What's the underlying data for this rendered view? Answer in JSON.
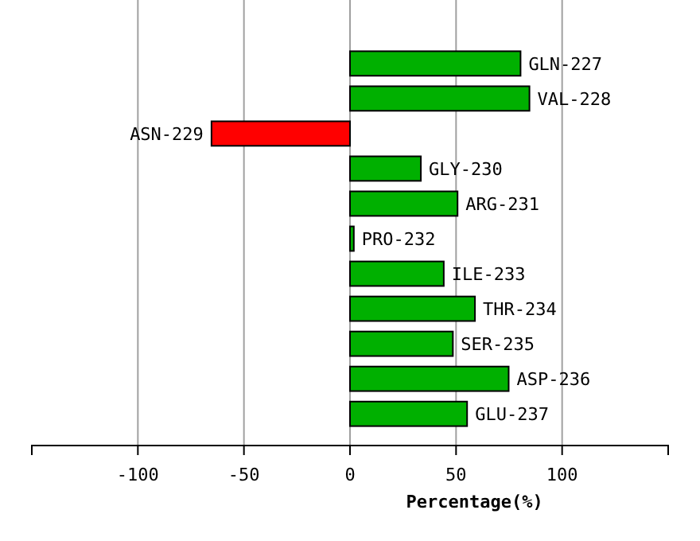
{
  "chart_data": {
    "type": "bar",
    "orientation": "horizontal",
    "xlabel": "Percentage(%)",
    "categories": [
      "GLN-227",
      "VAL-228",
      "ASN-229",
      "GLY-230",
      "ARG-231",
      "PRO-232",
      "ILE-233",
      "THR-234",
      "SER-235",
      "ASP-236",
      "GLU-237"
    ],
    "values": [
      80.4,
      84.6,
      -65.3,
      33.4,
      50.7,
      1.8,
      44.2,
      58.9,
      48.5,
      74.8,
      55.2
    ],
    "colors": [
      "#00b000",
      "#00b000",
      "#ff0000",
      "#00b000",
      "#00b000",
      "#00b000",
      "#00b000",
      "#00b000",
      "#00b000",
      "#00b000",
      "#00b000"
    ],
    "xlim": [
      -150,
      150
    ],
    "xticks": [
      -100,
      -50,
      0,
      50,
      100
    ],
    "grid": "x"
  }
}
